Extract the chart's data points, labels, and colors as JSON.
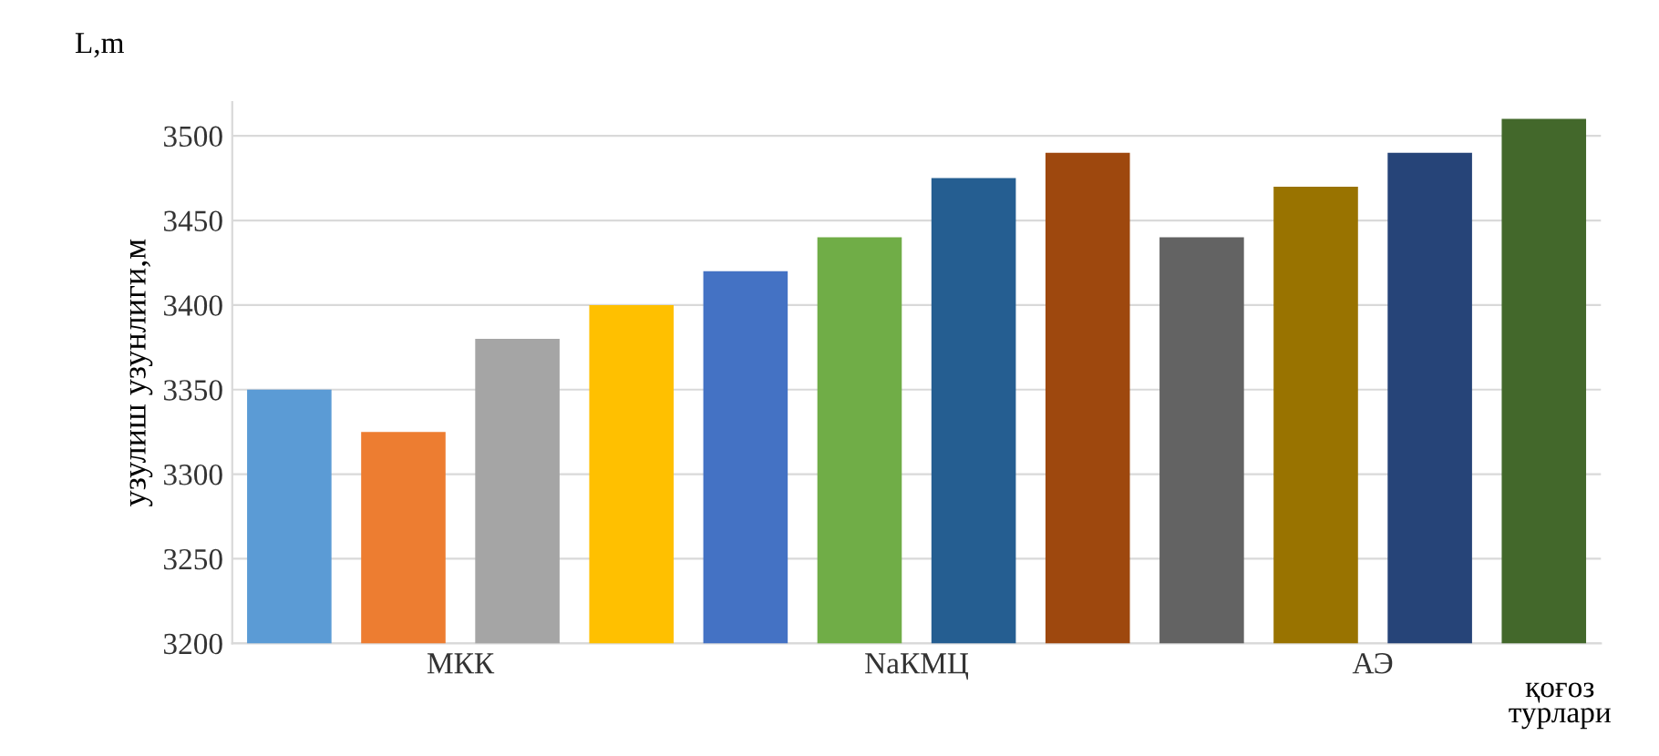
{
  "chart_data": {
    "type": "bar",
    "categories": [
      "МКК",
      "NaКМЦ",
      "АЭ"
    ],
    "xlabel": "қоғоз\nтурлари",
    "ylabel": "узулиш узунлиги,м",
    "annotations": [
      "L,m"
    ],
    "series": [
      {
        "colors": [
          "#5b9bd5",
          "#4472c4",
          "#636363"
        ],
        "values": [
          3350,
          3420,
          3440
        ]
      },
      {
        "colors": [
          "#ed7d31",
          "#70ad47",
          "#997300"
        ],
        "values": [
          3325,
          3440,
          3470
        ]
      },
      {
        "colors": [
          "#a5a5a5",
          "#255e91",
          "#264478"
        ],
        "values": [
          3380,
          3475,
          3490
        ]
      },
      {
        "colors": [
          "#ffc000",
          "#9e480e",
          "#43682b"
        ],
        "values": [
          3400,
          3490,
          3510
        ]
      }
    ],
    "ylim": [
      3200,
      3520
    ],
    "yticks": [
      3200,
      3250,
      3300,
      3350,
      3400,
      3450,
      3500
    ],
    "grid": "y"
  }
}
